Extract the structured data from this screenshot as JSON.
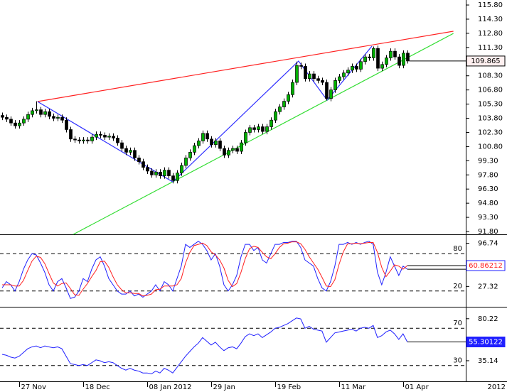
{
  "chart_data": [
    {
      "type": "candlestick",
      "xlim": [
        -0.5,
        108.7
      ],
      "ylim": [
        91.5,
        116.33
      ],
      "up_color": "#00b000",
      "down_color": "#000000",
      "yticks": [
        {
          "value": 115.8,
          "label": "115.80"
        },
        {
          "value": 114.3,
          "label": "114.30"
        },
        {
          "value": 112.8,
          "label": "112.80"
        },
        {
          "value": 111.3,
          "label": "111.30"
        },
        {
          "value": 109.8,
          "label": "109.80"
        },
        {
          "value": 108.3,
          "label": "108.30"
        },
        {
          "value": 106.8,
          "label": "106.80"
        },
        {
          "value": 105.3,
          "label": "105.30"
        },
        {
          "value": 103.8,
          "label": "103.80"
        },
        {
          "value": 102.3,
          "label": "102.30"
        },
        {
          "value": 100.8,
          "label": "100.80"
        },
        {
          "value": 99.3,
          "label": "99.30"
        },
        {
          "value": 97.8,
          "label": "97.80"
        },
        {
          "value": 96.3,
          "label": "96.30"
        },
        {
          "value": 94.8,
          "label": "94.80"
        },
        {
          "value": 93.3,
          "label": "93.30"
        },
        {
          "value": 91.8,
          "label": "91.80"
        }
      ],
      "open": [
        104.1,
        103.9,
        103.7,
        103.3,
        103.0,
        103.3,
        103.7,
        104.2,
        104.6,
        104.7,
        104.2,
        104.5,
        104.0,
        103.8,
        103.9,
        103.6,
        102.6,
        101.6,
        101.5,
        101.4,
        101.5,
        101.4,
        101.8,
        102.1,
        102.0,
        101.8,
        101.9,
        101.7,
        101.2,
        100.6,
        100.2,
        100.4,
        99.6,
        99.2,
        98.6,
        98.2,
        97.8,
        98.1,
        97.7,
        98.3,
        97.7,
        97.2,
        98.0,
        98.8,
        99.6,
        100.2,
        100.9,
        101.4,
        102.2,
        101.6,
        101.0,
        101.4,
        100.6,
        99.9,
        100.4,
        100.6,
        100.3,
        101.2,
        102.3,
        102.8,
        102.6,
        102.9,
        102.4,
        102.9,
        103.6,
        104.5,
        105.0,
        105.6,
        106.3,
        107.6,
        109.4,
        109.3,
        108.0,
        108.5,
        108.0,
        107.8,
        107.6,
        105.9,
        106.8,
        107.8,
        108.2,
        108.6,
        108.9,
        109.3,
        109.0,
        109.8,
        110.3,
        110.2,
        111.2,
        109.1,
        109.5,
        110.2,
        110.9,
        110.3,
        109.4,
        110.7
      ],
      "high": [
        104.4,
        104.2,
        104.0,
        103.6,
        103.6,
        104.0,
        104.5,
        104.9,
        105.6,
        105.0,
        104.8,
        104.8,
        104.3,
        104.2,
        104.2,
        103.9,
        102.9,
        101.9,
        101.8,
        101.8,
        101.8,
        102.1,
        102.4,
        102.4,
        102.3,
        102.2,
        102.2,
        102.0,
        101.5,
        100.9,
        100.7,
        100.7,
        99.9,
        99.5,
        98.9,
        98.5,
        98.4,
        98.4,
        98.6,
        98.6,
        98.0,
        98.3,
        99.1,
        99.9,
        100.5,
        101.2,
        101.7,
        102.5,
        102.5,
        101.9,
        101.7,
        101.7,
        100.9,
        100.7,
        100.9,
        100.9,
        101.5,
        102.6,
        103.1,
        103.1,
        103.2,
        103.2,
        103.2,
        103.9,
        104.8,
        105.3,
        105.9,
        106.6,
        107.9,
        109.8,
        109.7,
        109.6,
        108.8,
        108.8,
        108.3,
        108.1,
        107.9,
        107.1,
        108.1,
        108.5,
        108.9,
        109.2,
        109.6,
        109.6,
        110.1,
        110.6,
        110.6,
        111.4,
        111.5,
        109.8,
        110.5,
        111.2,
        111.2,
        110.6,
        111.0,
        111.0
      ],
      "low": [
        103.6,
        103.4,
        103.0,
        102.7,
        102.7,
        103.0,
        103.4,
        103.9,
        104.3,
        103.9,
        103.9,
        103.7,
        103.5,
        103.5,
        103.3,
        102.3,
        101.3,
        101.2,
        101.1,
        101.1,
        101.1,
        101.1,
        101.5,
        101.7,
        101.5,
        101.5,
        101.4,
        100.9,
        100.3,
        99.9,
        99.9,
        99.3,
        98.9,
        98.3,
        97.9,
        97.5,
        97.5,
        97.4,
        97.4,
        97.4,
        96.9,
        96.9,
        97.7,
        98.5,
        99.3,
        99.9,
        100.6,
        101.1,
        101.3,
        100.7,
        100.7,
        100.3,
        99.6,
        99.6,
        100.1,
        100.0,
        100.0,
        100.9,
        102.0,
        102.3,
        102.3,
        102.1,
        102.1,
        102.6,
        103.3,
        104.2,
        104.7,
        105.3,
        106.0,
        107.3,
        109.0,
        107.7,
        107.7,
        107.7,
        107.5,
        107.3,
        105.7,
        105.6,
        106.5,
        107.5,
        107.9,
        108.3,
        108.6,
        108.7,
        108.7,
        109.5,
        109.9,
        109.9,
        108.8,
        108.8,
        109.2,
        109.9,
        110.0,
        109.1,
        109.1,
        109.6
      ],
      "close": [
        103.9,
        103.7,
        103.3,
        103.0,
        103.3,
        103.7,
        104.2,
        104.6,
        104.7,
        104.2,
        104.5,
        104.0,
        103.8,
        103.9,
        103.6,
        102.6,
        101.6,
        101.5,
        101.4,
        101.5,
        101.4,
        101.8,
        102.1,
        102.0,
        101.8,
        101.9,
        101.7,
        101.2,
        100.6,
        100.2,
        100.4,
        99.6,
        99.2,
        98.6,
        98.2,
        97.8,
        98.1,
        97.7,
        98.3,
        97.7,
        97.2,
        98.0,
        98.8,
        99.6,
        100.2,
        100.9,
        101.4,
        102.2,
        101.6,
        101.0,
        101.4,
        100.6,
        99.9,
        100.4,
        100.6,
        100.3,
        101.2,
        102.3,
        102.8,
        102.6,
        102.9,
        102.4,
        102.9,
        103.6,
        104.5,
        105.0,
        105.6,
        106.3,
        107.6,
        109.4,
        109.3,
        108.0,
        108.5,
        108.0,
        107.8,
        107.6,
        105.9,
        106.8,
        107.8,
        108.2,
        108.6,
        108.9,
        109.3,
        109.0,
        109.8,
        110.3,
        110.2,
        111.2,
        109.1,
        109.5,
        110.2,
        110.9,
        110.3,
        109.4,
        110.7,
        109.865
      ],
      "lines": [
        {
          "color": "#ff2020",
          "x": [
            8.3,
            105.8
          ],
          "y": [
            105.57,
            113.02
          ]
        },
        {
          "color": "#33dd33",
          "x": [
            16.7,
            105.8
          ],
          "y": [
            91.5,
            112.79
          ]
        },
        {
          "color": "#3030ff",
          "x": [
            8.3,
            40,
            69.5,
            76.2,
            86.7
          ],
          "y": [
            105.57,
            97.06,
            109.86,
            105.72,
            111.44
          ]
        }
      ]
    },
    {
      "type": "line",
      "xlim": [
        -0.5,
        108.7
      ],
      "ylim": [
        -5.4,
        108.8
      ],
      "levels": [
        80,
        20
      ],
      "yticks": [
        96.74,
        27.32
      ],
      "series": [
        {
          "color": "#2020ff",
          "values": [
            25,
            35,
            30,
            20,
            35,
            55,
            70,
            80,
            78,
            65,
            50,
            30,
            20,
            35,
            40,
            25,
            8,
            10,
            20,
            40,
            35,
            55,
            70,
            75,
            60,
            40,
            30,
            20,
            15,
            15,
            20,
            12,
            15,
            10,
            15,
            20,
            30,
            20,
            35,
            30,
            20,
            40,
            60,
            95,
            90,
            95,
            100,
            95,
            85,
            70,
            80,
            60,
            30,
            20,
            30,
            45,
            75,
            95,
            95,
            85,
            90,
            70,
            65,
            80,
            95,
            95,
            98,
            98,
            100,
            100,
            90,
            70,
            65,
            60,
            40,
            25,
            20,
            35,
            60,
            95,
            95,
            98,
            95,
            98,
            95,
            98,
            100,
            95,
            50,
            30,
            50,
            75,
            60,
            45,
            60,
            55
          ]
        },
        {
          "color": "#ff2020",
          "values": [
            30,
            30,
            30,
            28,
            28,
            37,
            53,
            68,
            76,
            74,
            64,
            48,
            33,
            28,
            32,
            33,
            24,
            14,
            13,
            23,
            32,
            43,
            53,
            67,
            68,
            58,
            43,
            30,
            22,
            17,
            17,
            16,
            16,
            12,
            13,
            15,
            22,
            23,
            28,
            28,
            28,
            30,
            40,
            65,
            82,
            93,
            95,
            97,
            93,
            83,
            78,
            70,
            57,
            37,
            27,
            32,
            50,
            72,
            88,
            92,
            90,
            82,
            75,
            72,
            80,
            90,
            96,
            97,
            99,
            99,
            96,
            87,
            75,
            65,
            55,
            42,
            28,
            27,
            38,
            63,
            83,
            96,
            96,
            97,
            96,
            97,
            98,
            98,
            82,
            58,
            43,
            52,
            62,
            60,
            55,
            60.86212
          ]
        }
      ]
    },
    {
      "type": "line",
      "xlim": [
        -0.5,
        108.7
      ],
      "ylim": [
        13,
        91.5
      ],
      "levels": [
        70,
        30
      ],
      "yticks": [
        80.22,
        35.14
      ],
      "series": [
        {
          "color": "#2020ff",
          "values": [
            42,
            41,
            39,
            38,
            40,
            44,
            48,
            50,
            51,
            49,
            51,
            50,
            49,
            50,
            48,
            40,
            32,
            31,
            30,
            31,
            30,
            33,
            36,
            35,
            33,
            34,
            33,
            30,
            27,
            25,
            27,
            25,
            24,
            22,
            22,
            21,
            24,
            22,
            27,
            25,
            22,
            28,
            34,
            40,
            45,
            50,
            54,
            60,
            56,
            52,
            55,
            50,
            46,
            49,
            50,
            48,
            54,
            61,
            64,
            62,
            64,
            60,
            63,
            66,
            70,
            71,
            73,
            75,
            78,
            81,
            80,
            70,
            72,
            69,
            68,
            67,
            55,
            60,
            65,
            66,
            67,
            68,
            69,
            67,
            70,
            71,
            70,
            73,
            60,
            62,
            66,
            68,
            64,
            58,
            64,
            55.30122
          ]
        }
      ],
      "xticks": [
        {
          "value": 4,
          "label": "27 Nov"
        },
        {
          "value": 19,
          "label": "18 Dec"
        },
        {
          "value": 34,
          "label": "08 Jan 2012"
        },
        {
          "value": 49,
          "label": "29 Jan"
        },
        {
          "value": 64,
          "label": "19 Feb"
        },
        {
          "value": 79,
          "label": "11 Mar"
        },
        {
          "value": 94,
          "label": "01 Apr"
        }
      ],
      "x_corner_label": "2012"
    }
  ]
}
